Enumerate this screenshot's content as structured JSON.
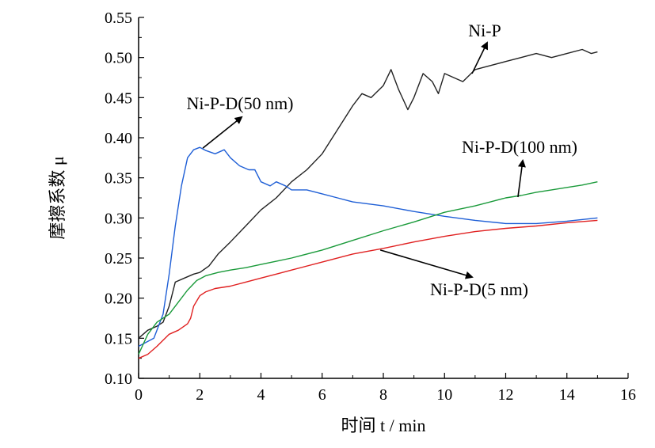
{
  "chart_data": {
    "type": "line",
    "xlabel": "时间  t / min",
    "ylabel": "摩擦系数  μ",
    "xlim": [
      0,
      16
    ],
    "ylim": [
      0.1,
      0.55
    ],
    "x_ticks": [
      "0",
      "2",
      "4",
      "6",
      "8",
      "10",
      "12",
      "14",
      "16"
    ],
    "y_ticks": [
      "0.10",
      "0.15",
      "0.20",
      "0.25",
      "0.30",
      "0.35",
      "0.40",
      "0.45",
      "0.50",
      "0.55"
    ],
    "grid": false,
    "colors": {
      "Ni-P": "#222222",
      "Ni-P-D(50 nm)": "#1f5fd6",
      "Ni-P-D(100 nm)": "#1a9a3a",
      "Ni-P-D(5 nm)": "#e02020"
    },
    "series": [
      {
        "name": "Ni-P",
        "x": [
          0,
          0.3,
          0.6,
          0.8,
          1.0,
          1.2,
          1.5,
          1.8,
          2.0,
          2.3,
          2.6,
          3.0,
          3.5,
          4.0,
          4.5,
          5.0,
          5.5,
          6.0,
          6.5,
          7.0,
          7.3,
          7.6,
          8.0,
          8.25,
          8.5,
          8.8,
          9.0,
          9.3,
          9.6,
          9.8,
          10.0,
          10.3,
          10.6,
          11.0,
          11.5,
          12.0,
          12.5,
          13.0,
          13.5,
          14.0,
          14.5,
          14.8,
          15.0
        ],
        "y": [
          0.15,
          0.16,
          0.165,
          0.17,
          0.19,
          0.22,
          0.225,
          0.23,
          0.232,
          0.24,
          0.255,
          0.27,
          0.29,
          0.31,
          0.325,
          0.345,
          0.36,
          0.38,
          0.41,
          0.44,
          0.455,
          0.45,
          0.465,
          0.485,
          0.46,
          0.435,
          0.45,
          0.48,
          0.47,
          0.455,
          0.48,
          0.475,
          0.47,
          0.485,
          0.49,
          0.495,
          0.5,
          0.505,
          0.5,
          0.505,
          0.51,
          0.505,
          0.507
        ]
      },
      {
        "name": "Ni-P-D(50 nm)",
        "x": [
          0,
          0.5,
          0.8,
          1.0,
          1.2,
          1.4,
          1.6,
          1.8,
          2.0,
          2.2,
          2.5,
          2.8,
          3.0,
          3.3,
          3.6,
          3.8,
          4.0,
          4.3,
          4.5,
          4.8,
          5.0,
          5.5,
          6.0,
          6.5,
          7.0,
          8.0,
          9.0,
          10.0,
          11.0,
          12.0,
          13.0,
          14.0,
          15.0
        ],
        "y": [
          0.14,
          0.15,
          0.18,
          0.23,
          0.29,
          0.34,
          0.375,
          0.385,
          0.388,
          0.384,
          0.38,
          0.385,
          0.375,
          0.365,
          0.36,
          0.36,
          0.345,
          0.34,
          0.345,
          0.34,
          0.335,
          0.335,
          0.33,
          0.325,
          0.32,
          0.315,
          0.308,
          0.302,
          0.297,
          0.293,
          0.293,
          0.296,
          0.3
        ]
      },
      {
        "name": "Ni-P-D(100 nm)",
        "x": [
          0,
          0.3,
          0.6,
          0.8,
          1.0,
          1.3,
          1.6,
          1.9,
          2.2,
          2.6,
          3.0,
          3.5,
          4.0,
          4.5,
          5.0,
          6.0,
          7.0,
          8.0,
          9.0,
          10.0,
          11.0,
          12.0,
          12.5,
          13.0,
          13.5,
          14.0,
          14.5,
          15.0
        ],
        "y": [
          0.13,
          0.155,
          0.17,
          0.175,
          0.18,
          0.195,
          0.21,
          0.222,
          0.228,
          0.232,
          0.235,
          0.238,
          0.242,
          0.246,
          0.25,
          0.26,
          0.272,
          0.284,
          0.295,
          0.307,
          0.315,
          0.325,
          0.328,
          0.332,
          0.335,
          0.338,
          0.341,
          0.345
        ]
      },
      {
        "name": "Ni-P-D(5 nm)",
        "x": [
          0,
          0.3,
          0.6,
          1.0,
          1.3,
          1.6,
          1.7,
          1.8,
          2.0,
          2.2,
          2.5,
          3.0,
          3.5,
          4.0,
          4.5,
          5.0,
          6.0,
          7.0,
          8.0,
          9.0,
          10.0,
          11.0,
          12.0,
          13.0,
          14.0,
          15.0
        ],
        "y": [
          0.125,
          0.13,
          0.14,
          0.155,
          0.16,
          0.168,
          0.175,
          0.19,
          0.203,
          0.208,
          0.212,
          0.215,
          0.22,
          0.225,
          0.23,
          0.235,
          0.245,
          0.255,
          0.262,
          0.27,
          0.277,
          0.283,
          0.287,
          0.29,
          0.294,
          0.297
        ]
      }
    ],
    "annotations": [
      {
        "text": "Ni-P",
        "target": [
          10.9,
          0.48
        ]
      },
      {
        "text": "Ni-P-D(50 nm)",
        "target": [
          2.1,
          0.387
        ]
      },
      {
        "text": "Ni-P-D(100 nm)",
        "target": [
          12.4,
          0.326
        ]
      },
      {
        "text": "Ni-P-D(5 nm)",
        "target": [
          7.9,
          0.26
        ]
      }
    ]
  }
}
